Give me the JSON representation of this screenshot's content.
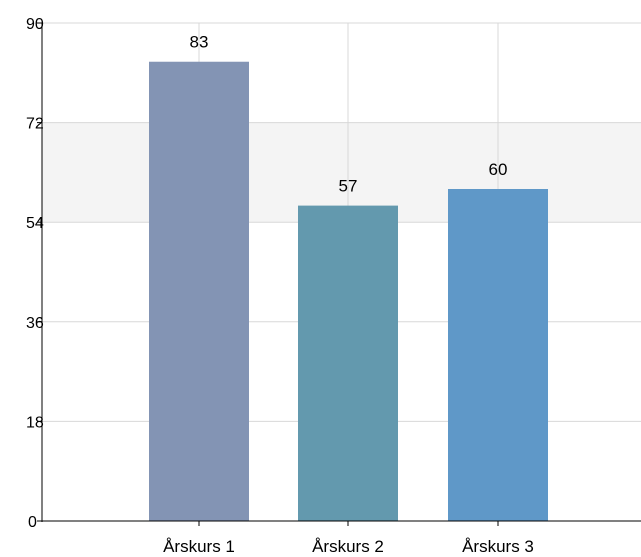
{
  "chart_data": {
    "type": "bar",
    "categories": [
      "Årskurs 1",
      "Årskurs 2",
      "Årskurs 3"
    ],
    "values": [
      83,
      57,
      60
    ],
    "data_labels": [
      "83",
      "57",
      "60"
    ],
    "colors": [
      "#8394b4",
      "#6399ae",
      "#5f98c8"
    ],
    "ylim": [
      0,
      90
    ],
    "yticks": [
      0,
      18,
      36,
      54,
      72,
      90
    ],
    "ytick_labels": [
      "0",
      "18",
      "36",
      "54",
      "72",
      "90"
    ],
    "title": "",
    "xlabel": "",
    "ylabel": "",
    "grid": true,
    "band_color": "#f4f4f4",
    "grid_color": "#d8d8d8",
    "axis_color": "#000000"
  }
}
